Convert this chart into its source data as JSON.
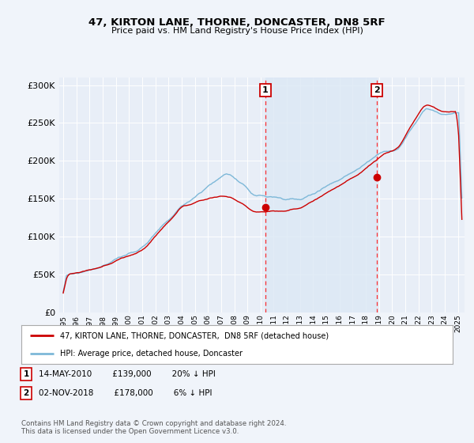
{
  "title": "47, KIRTON LANE, THORNE, DONCASTER, DN8 5RF",
  "subtitle": "Price paid vs. HM Land Registry's House Price Index (HPI)",
  "ylabel_ticks": [
    "£0",
    "£50K",
    "£100K",
    "£150K",
    "£200K",
    "£250K",
    "£300K"
  ],
  "ytick_values": [
    0,
    50000,
    100000,
    150000,
    200000,
    250000,
    300000
  ],
  "ylim": [
    0,
    310000
  ],
  "hpi_color": "#7db8d8",
  "price_color": "#cc0000",
  "sale1_date": 2010.37,
  "sale1_price": 139000,
  "sale2_date": 2018.84,
  "sale2_price": 178000,
  "legend_label1": "47, KIRTON LANE, THORNE, DONCASTER,  DN8 5RF (detached house)",
  "legend_label2": "HPI: Average price, detached house, Doncaster",
  "annotation1_text": "14-MAY-2010        £139,000        20% ↓ HPI",
  "annotation2_text": "02-NOV-2018        £178,000        6% ↓ HPI",
  "footnote": "Contains HM Land Registry data © Crown copyright and database right 2024.\nThis data is licensed under the Open Government Licence v3.0.",
  "background_color": "#f0f4fa",
  "plot_bg_color": "#e8eef7",
  "shade_color": "#dce8f5"
}
